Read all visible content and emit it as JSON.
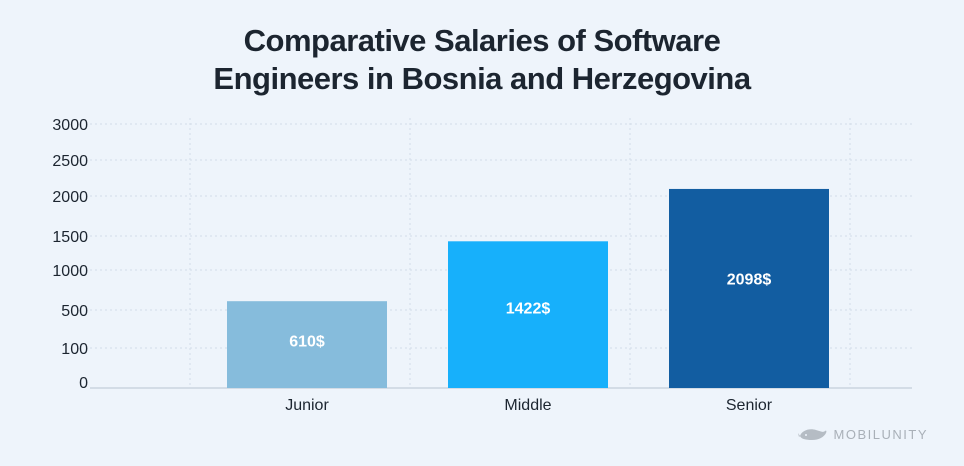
{
  "title_line1": "Comparative Salaries of Software",
  "title_line2": "Engineers in Bosnia and Herzegovina",
  "brand": "MOBILUNITY",
  "chart_data": {
    "type": "bar",
    "title": "Comparative Salaries of Software Engineers in Bosnia and Herzegovina",
    "categories": [
      "Junior",
      "Middle",
      "Senior"
    ],
    "values": [
      610,
      1422,
      2098
    ],
    "data_labels": [
      "610$",
      "1422$",
      "2098$"
    ],
    "bar_colors": [
      "#86bcdc",
      "#17b0fb",
      "#125da1"
    ],
    "y_ticks": [
      "0",
      "100",
      "500",
      "1000",
      "1500",
      "2000",
      "2500",
      "3000"
    ],
    "xlabel": "",
    "ylabel": "",
    "grid": true,
    "legend": "none"
  }
}
